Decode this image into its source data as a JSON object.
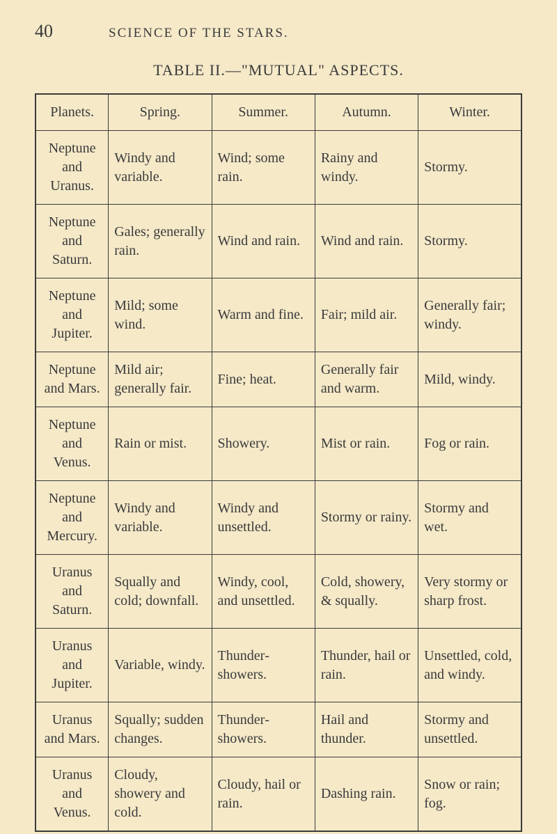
{
  "page_number": "40",
  "running_head": "SCIENCE OF THE STARS.",
  "table_title": "TABLE II.—\"MUTUAL\" ASPECTS.",
  "headers": {
    "col1": "Planets.",
    "col2": "Spring.",
    "col3": "Summer.",
    "col4": "Autumn.",
    "col5": "Winter."
  },
  "rows": [
    {
      "planets": "Neptune and Uranus.",
      "spring": "Windy and variable.",
      "summer": "Wind; some rain.",
      "autumn": "Rainy and windy.",
      "winter": "Stormy."
    },
    {
      "planets": "Neptune and Saturn.",
      "spring": "Gales; gene­rally rain.",
      "summer": "Wind and rain.",
      "autumn": "Wind and rain.",
      "winter": "Stormy."
    },
    {
      "planets": "Neptune and Jupiter.",
      "spring": "Mild; some wind.",
      "summer": "Warm and fine.",
      "autumn": "Fair; mild air.",
      "winter": "Generally fair; windy."
    },
    {
      "planets": "Neptune and Mars.",
      "spring": "Mild air; generally fair.",
      "summer": "Fine; heat.",
      "autumn": "Generally fair and warm.",
      "winter": "Mild, windy."
    },
    {
      "planets": "Neptune and Venus.",
      "spring": "Rain or mist.",
      "summer": "Showery.",
      "autumn": "Mist or rain.",
      "winter": "Fog or rain."
    },
    {
      "planets": "Neptune and Mercury.",
      "spring": "Windy and variable.",
      "summer": "Windy and unsettled.",
      "autumn": "Stormy or rainy.",
      "winter": "Stormy and wet."
    },
    {
      "planets": "Uranus and Saturn.",
      "spring": "Squally and cold; down­fall.",
      "summer": "Windy, cool, and unset­tled.",
      "autumn": "Cold, showery, & squally.",
      "winter": "Very stormy or sharp frost."
    },
    {
      "planets": "Uranus and Jupiter.",
      "spring": "Variable, windy.",
      "summer": "Thunder­showers.",
      "autumn": "Thunder, hail or rain.",
      "winter": "Unsettled, cold, and windy."
    },
    {
      "planets": "Uranus and Mars.",
      "spring": "Squally; sudden changes.",
      "summer": "Thunder­showers.",
      "autumn": "Hail and thunder.",
      "winter": "Stormy and unsettled."
    },
    {
      "planets": "Uranus and Venus.",
      "spring": "Cloudy, showery and cold.",
      "summer": "Cloudy, hail or rain.",
      "autumn": "Dashing rain.",
      "winter": "Snow or rain; fog."
    }
  ]
}
